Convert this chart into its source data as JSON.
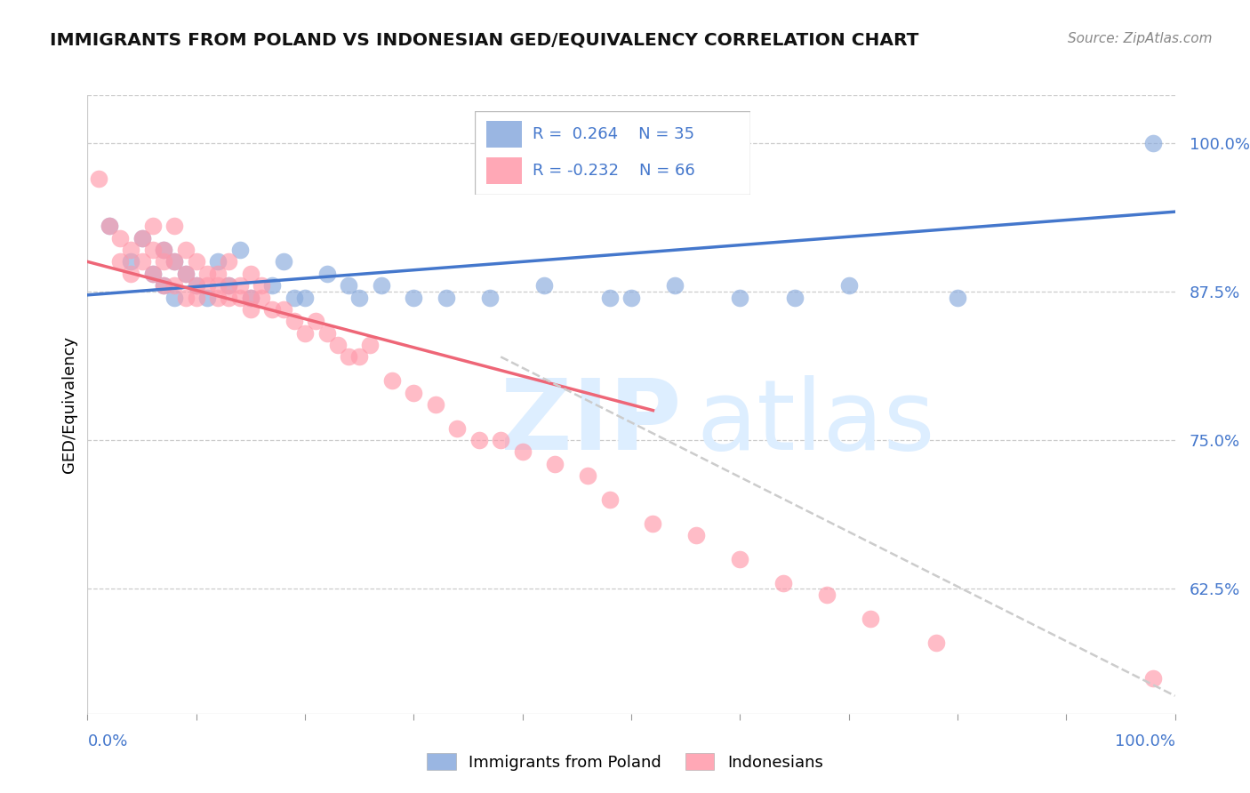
{
  "title": "IMMIGRANTS FROM POLAND VS INDONESIAN GED/EQUIVALENCY CORRELATION CHART",
  "source": "Source: ZipAtlas.com",
  "ylabel": "GED/Equivalency",
  "color_blue": "#88AADD",
  "color_pink": "#FF99AA",
  "color_blue_line": "#4477CC",
  "color_pink_line": "#EE6677",
  "color_dashed": "#CCCCCC",
  "color_tick_label": "#4477CC",
  "xmin": 0.0,
  "xmax": 1.0,
  "ymin": 0.52,
  "ymax": 1.04,
  "yticks": [
    0.625,
    0.75,
    0.875,
    1.0
  ],
  "ytick_labels": [
    "62.5%",
    "75.0%",
    "87.5%",
    "100.0%"
  ],
  "blue_scatter_x": [
    0.02,
    0.04,
    0.05,
    0.06,
    0.07,
    0.07,
    0.08,
    0.08,
    0.09,
    0.1,
    0.11,
    0.12,
    0.13,
    0.14,
    0.15,
    0.17,
    0.18,
    0.19,
    0.2,
    0.22,
    0.24,
    0.25,
    0.27,
    0.3,
    0.33,
    0.37,
    0.42,
    0.48,
    0.5,
    0.54,
    0.6,
    0.65,
    0.7,
    0.8,
    0.98
  ],
  "blue_scatter_y": [
    0.93,
    0.9,
    0.92,
    0.89,
    0.91,
    0.88,
    0.9,
    0.87,
    0.89,
    0.88,
    0.87,
    0.9,
    0.88,
    0.91,
    0.87,
    0.88,
    0.9,
    0.87,
    0.87,
    0.89,
    0.88,
    0.87,
    0.88,
    0.87,
    0.87,
    0.87,
    0.88,
    0.87,
    0.87,
    0.88,
    0.87,
    0.87,
    0.88,
    0.87,
    1.0
  ],
  "pink_scatter_x": [
    0.01,
    0.02,
    0.03,
    0.03,
    0.04,
    0.04,
    0.05,
    0.05,
    0.06,
    0.06,
    0.06,
    0.07,
    0.07,
    0.07,
    0.08,
    0.08,
    0.08,
    0.09,
    0.09,
    0.09,
    0.1,
    0.1,
    0.1,
    0.11,
    0.11,
    0.12,
    0.12,
    0.12,
    0.13,
    0.13,
    0.13,
    0.14,
    0.14,
    0.15,
    0.15,
    0.15,
    0.16,
    0.16,
    0.17,
    0.18,
    0.19,
    0.2,
    0.21,
    0.22,
    0.23,
    0.24,
    0.25,
    0.26,
    0.28,
    0.3,
    0.32,
    0.34,
    0.36,
    0.38,
    0.4,
    0.43,
    0.46,
    0.48,
    0.52,
    0.56,
    0.6,
    0.64,
    0.68,
    0.72,
    0.78,
    0.98
  ],
  "pink_scatter_y": [
    0.97,
    0.93,
    0.9,
    0.92,
    0.91,
    0.89,
    0.92,
    0.9,
    0.91,
    0.93,
    0.89,
    0.91,
    0.9,
    0.88,
    0.93,
    0.9,
    0.88,
    0.91,
    0.89,
    0.87,
    0.9,
    0.88,
    0.87,
    0.89,
    0.88,
    0.89,
    0.88,
    0.87,
    0.9,
    0.88,
    0.87,
    0.88,
    0.87,
    0.89,
    0.87,
    0.86,
    0.88,
    0.87,
    0.86,
    0.86,
    0.85,
    0.84,
    0.85,
    0.84,
    0.83,
    0.82,
    0.82,
    0.83,
    0.8,
    0.79,
    0.78,
    0.76,
    0.75,
    0.75,
    0.74,
    0.73,
    0.72,
    0.7,
    0.68,
    0.67,
    0.65,
    0.63,
    0.62,
    0.6,
    0.58,
    0.55
  ],
  "blue_line_x": [
    0.0,
    1.0
  ],
  "blue_line_y": [
    0.872,
    0.942
  ],
  "pink_line_x": [
    0.0,
    0.52
  ],
  "pink_line_y": [
    0.9,
    0.775
  ],
  "dashed_line_x": [
    0.38,
    1.0
  ],
  "dashed_line_y": [
    0.82,
    0.535
  ],
  "xtick_positions": [
    0.0,
    0.1,
    0.2,
    0.3,
    0.4,
    0.5,
    0.6,
    0.7,
    0.8,
    0.9,
    1.0
  ]
}
